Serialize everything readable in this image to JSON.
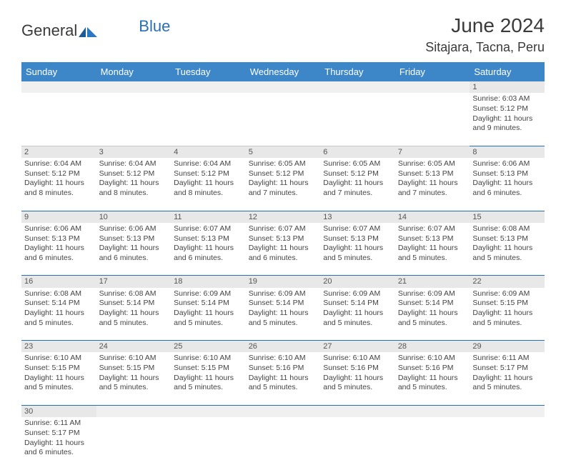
{
  "logo": {
    "text1": "General",
    "text2": "Blue"
  },
  "header": {
    "month_title": "June 2024",
    "location": "Sitajara, Tacna, Peru"
  },
  "columns": [
    "Sunday",
    "Monday",
    "Tuesday",
    "Wednesday",
    "Thursday",
    "Friday",
    "Saturday"
  ],
  "colors": {
    "header_bg": "#3d87c9",
    "header_fg": "#ffffff",
    "accent": "#2a6fb5",
    "daynum_bg": "#e8e8e8",
    "text": "#444444"
  },
  "weeks": [
    [
      null,
      null,
      null,
      null,
      null,
      null,
      {
        "day": "1",
        "sunrise": "6:03 AM",
        "sunset": "5:12 PM",
        "daylight": "11 hours and 9 minutes."
      }
    ],
    [
      {
        "day": "2",
        "sunrise": "6:04 AM",
        "sunset": "5:12 PM",
        "daylight": "11 hours and 8 minutes."
      },
      {
        "day": "3",
        "sunrise": "6:04 AM",
        "sunset": "5:12 PM",
        "daylight": "11 hours and 8 minutes."
      },
      {
        "day": "4",
        "sunrise": "6:04 AM",
        "sunset": "5:12 PM",
        "daylight": "11 hours and 8 minutes."
      },
      {
        "day": "5",
        "sunrise": "6:05 AM",
        "sunset": "5:12 PM",
        "daylight": "11 hours and 7 minutes."
      },
      {
        "day": "6",
        "sunrise": "6:05 AM",
        "sunset": "5:12 PM",
        "daylight": "11 hours and 7 minutes."
      },
      {
        "day": "7",
        "sunrise": "6:05 AM",
        "sunset": "5:13 PM",
        "daylight": "11 hours and 7 minutes."
      },
      {
        "day": "8",
        "sunrise": "6:06 AM",
        "sunset": "5:13 PM",
        "daylight": "11 hours and 6 minutes."
      }
    ],
    [
      {
        "day": "9",
        "sunrise": "6:06 AM",
        "sunset": "5:13 PM",
        "daylight": "11 hours and 6 minutes."
      },
      {
        "day": "10",
        "sunrise": "6:06 AM",
        "sunset": "5:13 PM",
        "daylight": "11 hours and 6 minutes."
      },
      {
        "day": "11",
        "sunrise": "6:07 AM",
        "sunset": "5:13 PM",
        "daylight": "11 hours and 6 minutes."
      },
      {
        "day": "12",
        "sunrise": "6:07 AM",
        "sunset": "5:13 PM",
        "daylight": "11 hours and 6 minutes."
      },
      {
        "day": "13",
        "sunrise": "6:07 AM",
        "sunset": "5:13 PM",
        "daylight": "11 hours and 5 minutes."
      },
      {
        "day": "14",
        "sunrise": "6:07 AM",
        "sunset": "5:13 PM",
        "daylight": "11 hours and 5 minutes."
      },
      {
        "day": "15",
        "sunrise": "6:08 AM",
        "sunset": "5:13 PM",
        "daylight": "11 hours and 5 minutes."
      }
    ],
    [
      {
        "day": "16",
        "sunrise": "6:08 AM",
        "sunset": "5:14 PM",
        "daylight": "11 hours and 5 minutes."
      },
      {
        "day": "17",
        "sunrise": "6:08 AM",
        "sunset": "5:14 PM",
        "daylight": "11 hours and 5 minutes."
      },
      {
        "day": "18",
        "sunrise": "6:09 AM",
        "sunset": "5:14 PM",
        "daylight": "11 hours and 5 minutes."
      },
      {
        "day": "19",
        "sunrise": "6:09 AM",
        "sunset": "5:14 PM",
        "daylight": "11 hours and 5 minutes."
      },
      {
        "day": "20",
        "sunrise": "6:09 AM",
        "sunset": "5:14 PM",
        "daylight": "11 hours and 5 minutes."
      },
      {
        "day": "21",
        "sunrise": "6:09 AM",
        "sunset": "5:14 PM",
        "daylight": "11 hours and 5 minutes."
      },
      {
        "day": "22",
        "sunrise": "6:09 AM",
        "sunset": "5:15 PM",
        "daylight": "11 hours and 5 minutes."
      }
    ],
    [
      {
        "day": "23",
        "sunrise": "6:10 AM",
        "sunset": "5:15 PM",
        "daylight": "11 hours and 5 minutes."
      },
      {
        "day": "24",
        "sunrise": "6:10 AM",
        "sunset": "5:15 PM",
        "daylight": "11 hours and 5 minutes."
      },
      {
        "day": "25",
        "sunrise": "6:10 AM",
        "sunset": "5:15 PM",
        "daylight": "11 hours and 5 minutes."
      },
      {
        "day": "26",
        "sunrise": "6:10 AM",
        "sunset": "5:16 PM",
        "daylight": "11 hours and 5 minutes."
      },
      {
        "day": "27",
        "sunrise": "6:10 AM",
        "sunset": "5:16 PM",
        "daylight": "11 hours and 5 minutes."
      },
      {
        "day": "28",
        "sunrise": "6:10 AM",
        "sunset": "5:16 PM",
        "daylight": "11 hours and 5 minutes."
      },
      {
        "day": "29",
        "sunrise": "6:11 AM",
        "sunset": "5:17 PM",
        "daylight": "11 hours and 5 minutes."
      }
    ],
    [
      {
        "day": "30",
        "sunrise": "6:11 AM",
        "sunset": "5:17 PM",
        "daylight": "11 hours and 6 minutes."
      },
      null,
      null,
      null,
      null,
      null,
      null
    ]
  ],
  "labels": {
    "sunrise": "Sunrise:",
    "sunset": "Sunset:",
    "daylight": "Daylight:"
  }
}
